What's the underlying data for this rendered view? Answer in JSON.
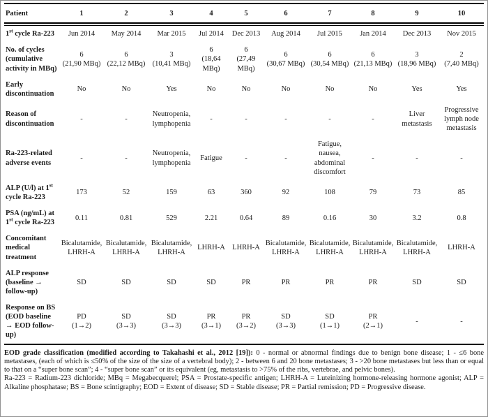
{
  "table": {
    "corner_label": "Patient",
    "patient_numbers": [
      "1",
      "2",
      "3",
      "4",
      "5",
      "6",
      "7",
      "8",
      "9",
      "10"
    ],
    "rows": [
      {
        "label": "1^st cycle Ra-223",
        "values": [
          "Jun 2014",
          "May 2014",
          "Mar 2015",
          "Jul 2014",
          "Dec 2013",
          "Aug 2014",
          "Jul 2015",
          "Jan 2014",
          "Dec 2013",
          "Nov 2015"
        ]
      },
      {
        "label": "No. of cycles (cumulative activity in MBq)",
        "values": [
          "6\n(21,90 MBq)",
          "6\n(22,12 MBq)",
          "3\n(10,41 MBq)",
          "6\n(18,64 MBq)",
          "6\n(27,49 MBq)",
          "6\n(30,67 MBq)",
          "6\n(30,54 MBq)",
          "6\n(21,13 MBq)",
          "3\n(18,96 MBq)",
          "2\n(7,40 MBq)"
        ]
      },
      {
        "label": "Early discontinuation",
        "values": [
          "No",
          "No",
          "Yes",
          "No",
          "No",
          "No",
          "No",
          "No",
          "Yes",
          "Yes"
        ]
      },
      {
        "label": "Reason of discontinuation",
        "values": [
          "-",
          "-",
          "Neutropenia, lymphopenia",
          "-",
          "-",
          "-",
          "-",
          "-",
          "Liver metastasis",
          "Progressive lymph node metastasis"
        ]
      },
      {
        "label": "Ra-223-related adverse events",
        "values": [
          "-",
          "-",
          "Neutropenia, lymphopenia",
          "Fatigue",
          "-",
          "-",
          "Fatigue, nausea, abdominal discomfort",
          "-",
          "-",
          "-"
        ]
      },
      {
        "label": "ALP (U/l) at 1^st cycle Ra-223",
        "values": [
          "173",
          "52",
          "159",
          "63",
          "360",
          "92",
          "108",
          "79",
          "73",
          "85"
        ]
      },
      {
        "label": "PSA (ng/mL) at 1^st cycle Ra-223",
        "values": [
          "0.11",
          "0.81",
          "529",
          "2.21",
          "0.64",
          "89",
          "0.16",
          "30",
          "3.2",
          "0.8"
        ]
      },
      {
        "label": "Concomitant medical treatment",
        "values": [
          "Bicalutamide, LHRH-A",
          "Bicalutamide, LHRH-A",
          "Bicalutamide, LHRH-A",
          "LHRH-A",
          "LHRH-A",
          "Bicalutamide, LHRH-A",
          "Bicalutamide, LHRH-A",
          "Bicalutamide, LHRH-A",
          "Bicalutamide, LHRH-A",
          "LHRH-A"
        ]
      },
      {
        "label": "ALP response (baseline → follow-up)",
        "values": [
          "SD",
          "SD",
          "SD",
          "SD",
          "PR",
          "PR",
          "PR",
          "PR",
          "SD",
          "SD"
        ]
      },
      {
        "label": "Response on BS (EOD baseline → EOD follow-up)",
        "values": [
          "PD\n(1→2)",
          "SD\n(3→3)",
          "SD\n(3→3)",
          "PR\n(3→1)",
          "PR\n(3→2)",
          "SD\n(3→3)",
          "SD\n(1→1)",
          "PR\n(2→1)",
          "-",
          "-"
        ]
      }
    ]
  },
  "footnote": {
    "classification_lead": "EOD grade classification (modified according to Takahashi et al., 2012 [19]):",
    "classification_text": "0 - normal or abnormal findings due to benign bone disease; 1 - ≤6 bone metastases, (each of which is ≤50% of the size of the size of a vertebral body); 2 - between 6 and 20 bone metastases; 3 - >20 bone metastases but less than or equal to that on a “super bone scan”; 4 - “super bone scan” or its equivalent (eg, metastasis to >75% of the ribs, vertebrae, and pelvic bones).",
    "abbreviations": "Ra-223 = Radium-223 dichloride; MBq = Megabecquerel; PSA = Prostate-specific antigen; LHRH-A = Luteinizing hormone-releasing hormone agonist; ALP = Alkaline phosphatase; BS = Bone scintigraphy; EOD = Extent of disease; SD = Stable disease; PR = Partial remission; PD = Progressive disease."
  }
}
